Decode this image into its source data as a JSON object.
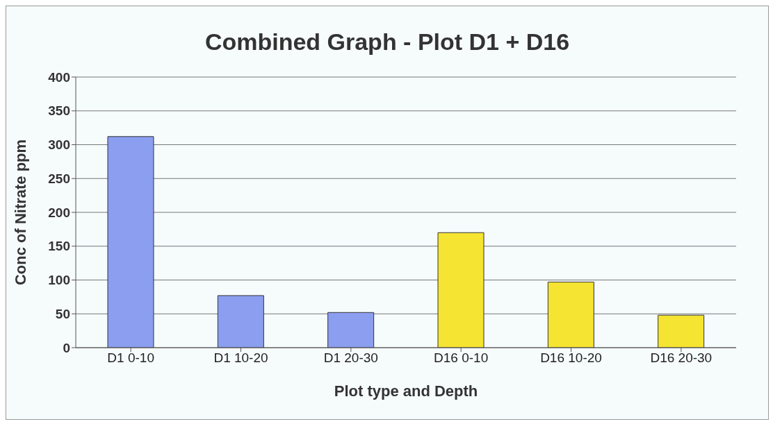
{
  "chart_data": {
    "type": "bar",
    "title": "Combined Graph - Plot D1 + D16",
    "xlabel": "Plot type and Depth",
    "ylabel": "Conc of Nitrate ppm",
    "categories": [
      "D1 0-10",
      "D1 10-20",
      "D1 20-30",
      "D16 0-10",
      "D16 10-20",
      "D16 20-30"
    ],
    "values": [
      312,
      77,
      52,
      170,
      97,
      48
    ],
    "colors": [
      "#8b9ef0",
      "#8b9ef0",
      "#8b9ef0",
      "#f5e431",
      "#f5e431",
      "#f5e431"
    ],
    "ylim": [
      0,
      400
    ],
    "yticks": [
      0,
      50,
      100,
      150,
      200,
      250,
      300,
      350,
      400
    ],
    "grid": "y"
  }
}
